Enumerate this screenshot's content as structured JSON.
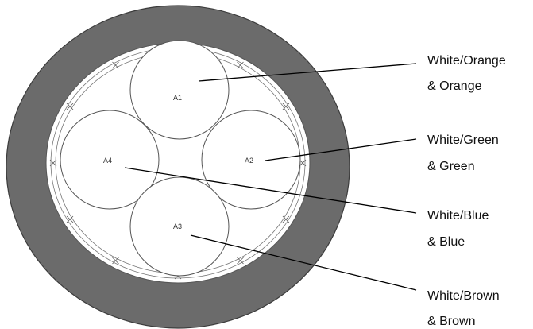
{
  "colors": {
    "jacket": "#6b6b6b",
    "jacket_stroke": "#3c3c3c",
    "inner_line": "#777777",
    "leader_line": "#000000",
    "background": "#ffffff"
  },
  "pairs": [
    {
      "id": "A1",
      "label_line1": "White/Orange",
      "label_line2": "& Orange"
    },
    {
      "id": "A2",
      "label_line1": "White/Green",
      "label_line2": "& Green"
    },
    {
      "id": "A4",
      "label_line1": "White/Blue",
      "label_line2": "& Blue"
    },
    {
      "id": "A3",
      "label_line1": "White/Brown",
      "label_line2": "& Brown"
    }
  ]
}
